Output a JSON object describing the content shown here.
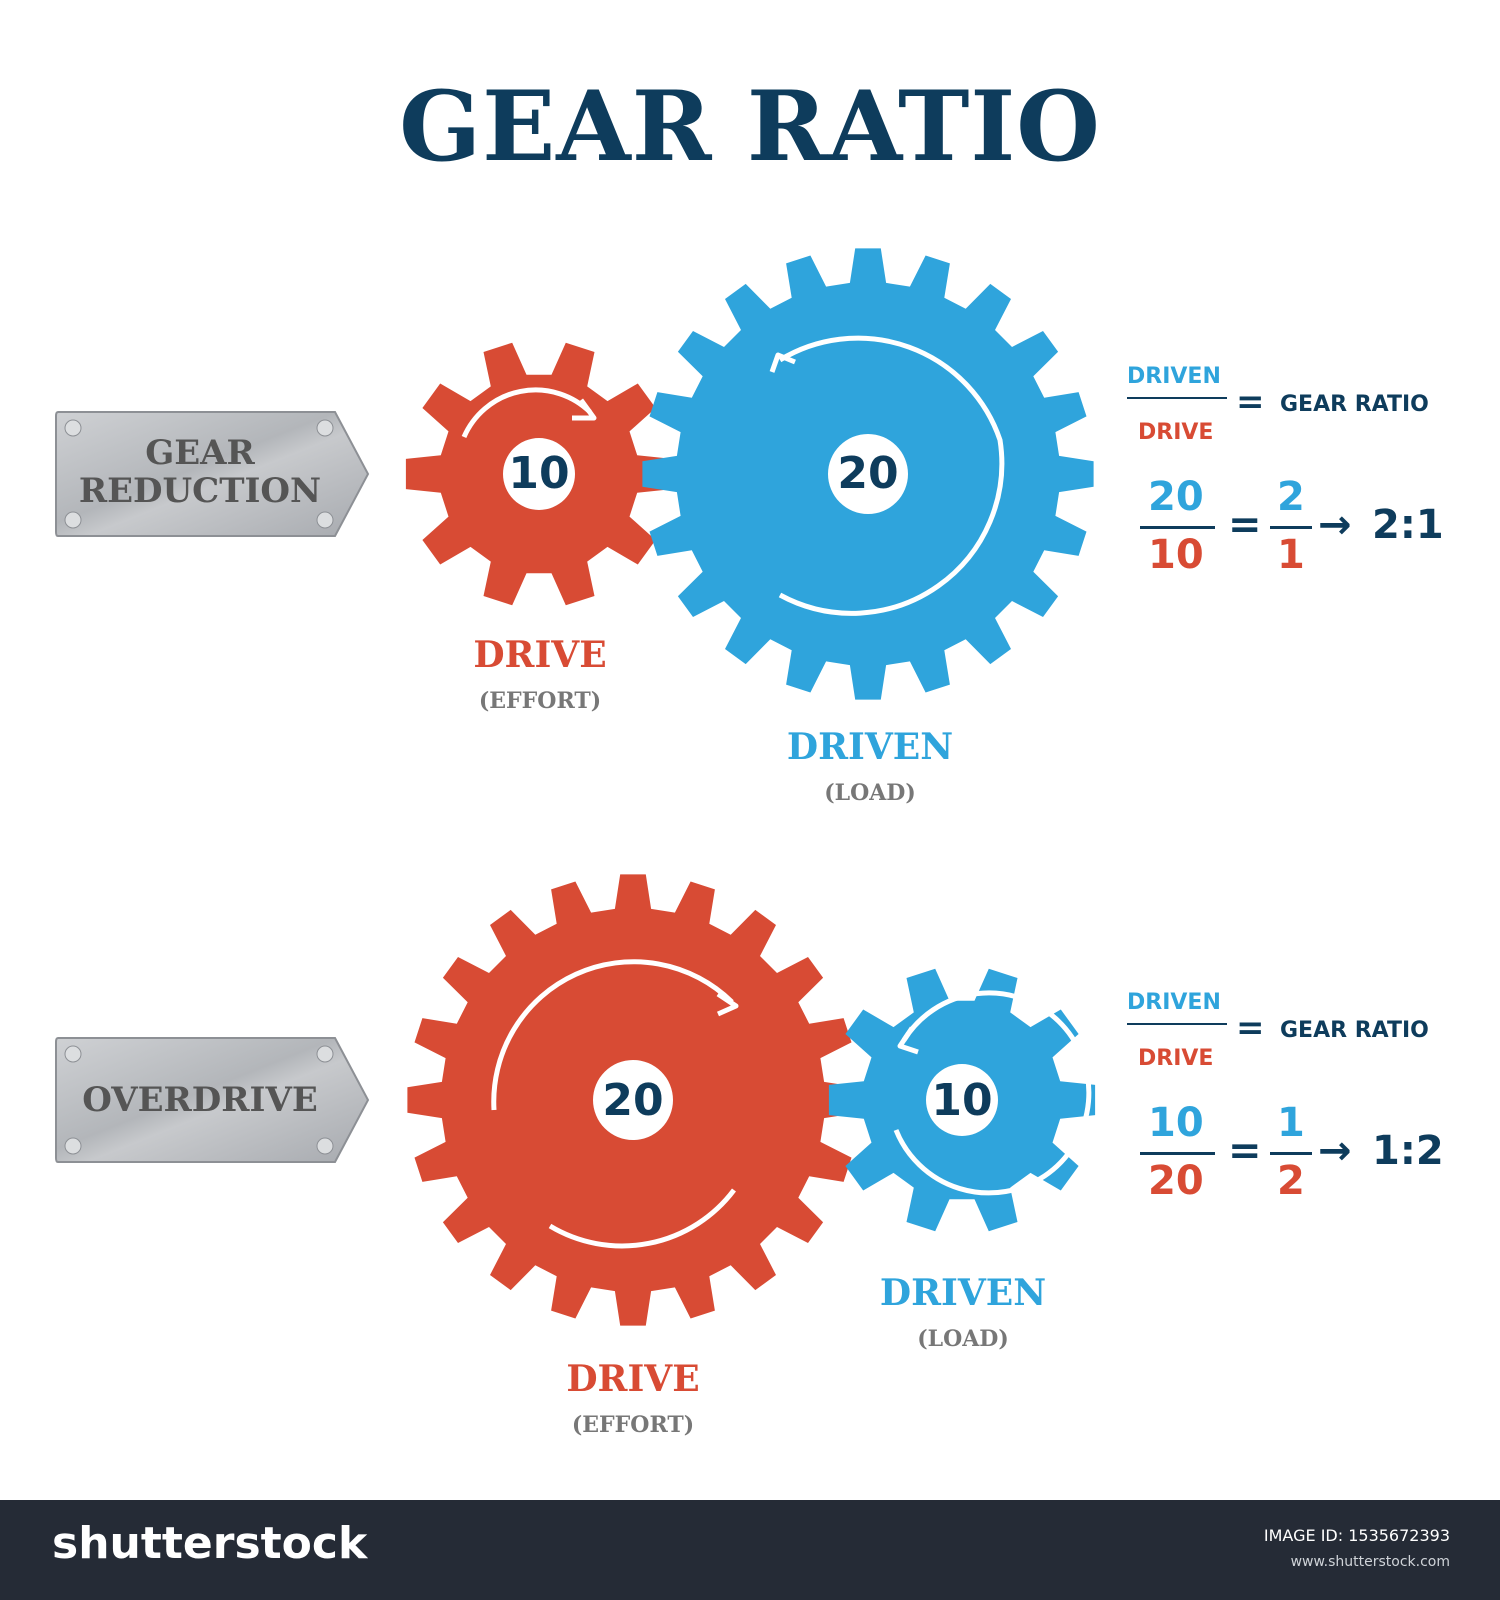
{
  "title": "GEAR RATIO",
  "colors": {
    "drive": "#d84b34",
    "driven": "#2fa4dc",
    "navy": "#0e3c5c",
    "label_grey": "#777777",
    "plate": "#b9bcc0"
  },
  "sections": [
    {
      "plate_label": "GEAR REDUCTION",
      "drive": {
        "teeth_label": "10",
        "teeth": 10,
        "name": "DRIVE",
        "sub": "(EFFORT)"
      },
      "driven": {
        "teeth_label": "20",
        "teeth": 20,
        "name": "DRIVEN",
        "sub": "(LOAD)"
      },
      "formula": {
        "numerator_word": "DRIVEN",
        "denominator_word": "DRIVE",
        "equals": "=",
        "result_word": "GEAR RATIO",
        "num1": "20",
        "den1": "10",
        "num2": "2",
        "den2": "1",
        "arrow": "→",
        "ratio": "2:1"
      }
    },
    {
      "plate_label": "OVERDRIVE",
      "drive": {
        "teeth_label": "20",
        "teeth": 20,
        "name": "DRIVE",
        "sub": "(EFFORT)"
      },
      "driven": {
        "teeth_label": "10",
        "teeth": 10,
        "name": "DRIVEN",
        "sub": "(LOAD)"
      },
      "formula": {
        "numerator_word": "DRIVEN",
        "denominator_word": "DRIVE",
        "equals": "=",
        "result_word": "GEAR RATIO",
        "num1": "10",
        "den1": "20",
        "num2": "1",
        "den2": "2",
        "arrow": "→",
        "ratio": "1:2"
      }
    }
  ],
  "footer": {
    "brand": "shutterstock",
    "image_id": "IMAGE ID: 1535672393",
    "url": "www.shutterstock.com"
  }
}
